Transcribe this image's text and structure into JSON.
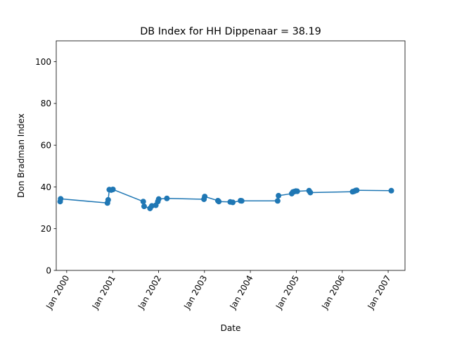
{
  "chart_data": {
    "type": "line",
    "title": "DB Index for HH Dippenaar = 38.19",
    "xlabel": "Date",
    "ylabel": "Don Bradman Index",
    "ylim": [
      0,
      110
    ],
    "xlim": [
      "1999-10-10",
      "2007-05-15"
    ],
    "yticks": [
      0,
      20,
      40,
      60,
      80,
      100
    ],
    "xticks": [
      {
        "date": "2000-01-01",
        "label": "Jan 2000"
      },
      {
        "date": "2001-01-01",
        "label": "Jan 2001"
      },
      {
        "date": "2002-01-01",
        "label": "Jan 2002"
      },
      {
        "date": "2003-01-01",
        "label": "Jan 2003"
      },
      {
        "date": "2004-01-01",
        "label": "Jan 2004"
      },
      {
        "date": "2005-01-01",
        "label": "Jan 2005"
      },
      {
        "date": "2006-01-01",
        "label": "Jan 2006"
      },
      {
        "date": "2007-01-01",
        "label": "Jan 2007"
      }
    ],
    "color": "#1f77b4",
    "grid": false,
    "series": [
      {
        "name": "",
        "points": [
          {
            "x": "1999-11-10",
            "y": 33.0
          },
          {
            "x": "1999-11-14",
            "y": 34.3
          },
          {
            "x": "2000-11-20",
            "y": 32.3
          },
          {
            "x": "2000-11-26",
            "y": 33.8
          },
          {
            "x": "2000-12-05",
            "y": 38.7
          },
          {
            "x": "2000-12-20",
            "y": 38.5
          },
          {
            "x": "2001-01-03",
            "y": 38.8
          },
          {
            "x": "2001-09-01",
            "y": 33.0
          },
          {
            "x": "2001-09-08",
            "y": 30.7
          },
          {
            "x": "2001-10-25",
            "y": 29.7
          },
          {
            "x": "2001-11-08",
            "y": 30.9
          },
          {
            "x": "2001-12-10",
            "y": 31.2
          },
          {
            "x": "2001-12-26",
            "y": 33.0
          },
          {
            "x": "2002-01-02",
            "y": 34.2
          },
          {
            "x": "2002-03-08",
            "y": 34.5
          },
          {
            "x": "2002-12-28",
            "y": 34.1
          },
          {
            "x": "2003-01-03",
            "y": 35.4
          },
          {
            "x": "2003-04-18",
            "y": 33.4
          },
          {
            "x": "2003-04-25",
            "y": 33.0
          },
          {
            "x": "2003-07-25",
            "y": 32.8
          },
          {
            "x": "2003-08-14",
            "y": 32.6
          },
          {
            "x": "2003-10-15",
            "y": 33.4
          },
          {
            "x": "2003-10-24",
            "y": 33.3
          },
          {
            "x": "2004-08-05",
            "y": 33.3
          },
          {
            "x": "2004-08-12",
            "y": 35.8
          },
          {
            "x": "2004-11-25",
            "y": 36.8
          },
          {
            "x": "2004-12-05",
            "y": 37.6
          },
          {
            "x": "2004-12-17",
            "y": 37.8
          },
          {
            "x": "2004-12-28",
            "y": 38.0
          },
          {
            "x": "2005-01-08",
            "y": 37.9
          },
          {
            "x": "2005-04-12",
            "y": 38.2
          },
          {
            "x": "2005-04-22",
            "y": 37.3
          },
          {
            "x": "2006-03-24",
            "y": 37.7
          },
          {
            "x": "2006-04-05",
            "y": 37.9
          },
          {
            "x": "2006-04-18",
            "y": 38.3
          },
          {
            "x": "2006-04-26",
            "y": 38.4
          },
          {
            "x": "2007-01-26",
            "y": 38.2
          }
        ]
      }
    ]
  }
}
